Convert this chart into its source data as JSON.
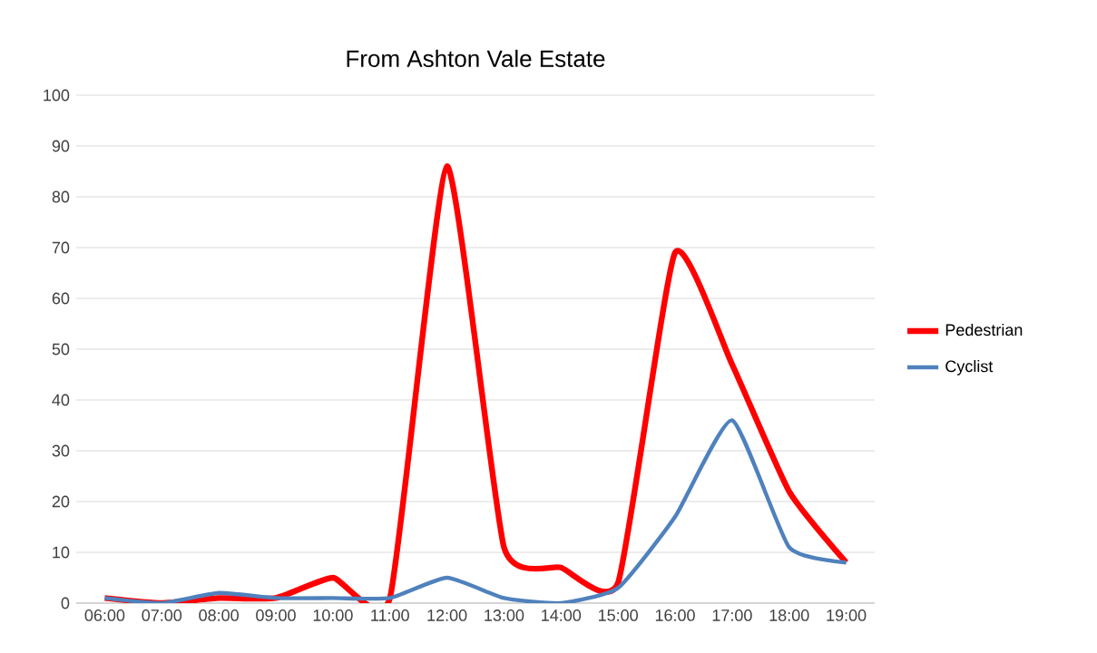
{
  "chart_data": {
    "type": "line",
    "title": "From Ashton Vale Estate",
    "categories": [
      "06:00",
      "07:00",
      "08:00",
      "09:00",
      "10:00",
      "11:00",
      "12:00",
      "13:00",
      "14:00",
      "15:00",
      "16:00",
      "17:00",
      "18:00",
      "19:00"
    ],
    "series": [
      {
        "name": "Pedestrian",
        "color": "#ff0000",
        "values": [
          1,
          0,
          1,
          1,
          5,
          1,
          86,
          11,
          7,
          4,
          69,
          47,
          22,
          8
        ]
      },
      {
        "name": "Cyclist",
        "color": "#4f81bd",
        "values": [
          1,
          0,
          2,
          1,
          1,
          1,
          5,
          1,
          0,
          3,
          17,
          36,
          11,
          8
        ]
      }
    ],
    "ylim": [
      0,
      100
    ],
    "yticks": [
      0,
      10,
      20,
      30,
      40,
      50,
      60,
      70,
      80,
      90,
      100
    ],
    "grid": "y",
    "legend": "right",
    "marker": "none",
    "line_style": "solid"
  }
}
